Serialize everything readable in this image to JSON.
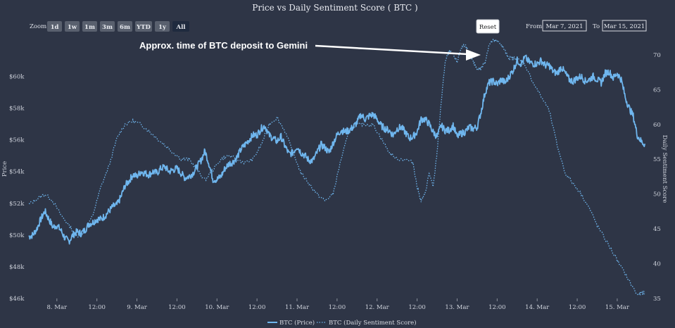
{
  "chart_data": {
    "type": "line",
    "title": "Price vs Daily Sentiment Score ( BTC )",
    "ylabel": "Price",
    "y2label": "Daily Sentiment Score",
    "ylim": [
      46000,
      61800
    ],
    "y2lim": [
      35,
      71
    ],
    "y_ticks": [
      {
        "value": 46000,
        "label": "$46k"
      },
      {
        "value": 48000,
        "label": "$48k"
      },
      {
        "value": 50000,
        "label": "$50k"
      },
      {
        "value": 52000,
        "label": "$52k"
      },
      {
        "value": 54000,
        "label": "$54k"
      },
      {
        "value": 56000,
        "label": "$56k"
      },
      {
        "value": 58000,
        "label": "$58k"
      },
      {
        "value": 60000,
        "label": "$60k"
      }
    ],
    "y2_ticks": [
      35,
      40,
      45,
      50,
      55,
      60,
      65,
      70
    ],
    "x_ticks": [
      {
        "t": 1,
        "label": "8. Mar"
      },
      {
        "t": 1.5,
        "label": "12:00"
      },
      {
        "t": 2,
        "label": "9. Mar"
      },
      {
        "t": 2.5,
        "label": "12:00"
      },
      {
        "t": 3,
        "label": "10. Mar"
      },
      {
        "t": 3.5,
        "label": "12:00"
      },
      {
        "t": 4,
        "label": "11. Mar"
      },
      {
        "t": 4.5,
        "label": "12:00"
      },
      {
        "t": 5,
        "label": "12. Mar"
      },
      {
        "t": 5.5,
        "label": "12:00"
      },
      {
        "t": 6,
        "label": "13. Mar"
      },
      {
        "t": 6.5,
        "label": "12:00"
      },
      {
        "t": 7,
        "label": "14. Mar"
      },
      {
        "t": 7.5,
        "label": "12:00"
      },
      {
        "t": 8,
        "label": "15. Mar"
      }
    ],
    "xlim": [
      0.65,
      8.37
    ],
    "series": [
      {
        "name": "BTC (Price)",
        "style": "solid",
        "axis": "left",
        "color": "#6fb6ee",
        "points": [
          [
            0.65,
            49900
          ],
          [
            0.7,
            50000
          ],
          [
            0.75,
            50400
          ],
          [
            0.8,
            51000
          ],
          [
            0.85,
            51500
          ],
          [
            0.9,
            51000
          ],
          [
            0.95,
            50500
          ],
          [
            1.0,
            50600
          ],
          [
            1.05,
            50300
          ],
          [
            1.1,
            49800
          ],
          [
            1.15,
            49600
          ],
          [
            1.2,
            50000
          ],
          [
            1.25,
            50200
          ],
          [
            1.3,
            50100
          ],
          [
            1.35,
            50300
          ],
          [
            1.4,
            50700
          ],
          [
            1.45,
            50800
          ],
          [
            1.5,
            51000
          ],
          [
            1.55,
            51000
          ],
          [
            1.6,
            51200
          ],
          [
            1.65,
            51500
          ],
          [
            1.7,
            51800
          ],
          [
            1.75,
            51900
          ],
          [
            1.8,
            52400
          ],
          [
            1.85,
            53100
          ],
          [
            1.9,
            53400
          ],
          [
            1.95,
            53800
          ],
          [
            2.0,
            53700
          ],
          [
            2.05,
            54000
          ],
          [
            2.1,
            53900
          ],
          [
            2.15,
            53800
          ],
          [
            2.2,
            54000
          ],
          [
            2.25,
            53900
          ],
          [
            2.3,
            54200
          ],
          [
            2.35,
            54300
          ],
          [
            2.4,
            54000
          ],
          [
            2.45,
            54100
          ],
          [
            2.5,
            54200
          ],
          [
            2.55,
            53900
          ],
          [
            2.6,
            53600
          ],
          [
            2.65,
            53700
          ],
          [
            2.7,
            53900
          ],
          [
            2.75,
            54300
          ],
          [
            2.8,
            54700
          ],
          [
            2.85,
            55300
          ],
          [
            2.9,
            54500
          ],
          [
            2.95,
            53500
          ],
          [
            3.0,
            53500
          ],
          [
            3.05,
            53700
          ],
          [
            3.1,
            54200
          ],
          [
            3.15,
            54500
          ],
          [
            3.2,
            54600
          ],
          [
            3.25,
            54900
          ],
          [
            3.3,
            55400
          ],
          [
            3.35,
            55700
          ],
          [
            3.4,
            56000
          ],
          [
            3.45,
            56300
          ],
          [
            3.5,
            56300
          ],
          [
            3.55,
            56700
          ],
          [
            3.6,
            56900
          ],
          [
            3.65,
            56300
          ],
          [
            3.7,
            56100
          ],
          [
            3.75,
            55900
          ],
          [
            3.8,
            56200
          ],
          [
            3.85,
            55600
          ],
          [
            3.9,
            55100
          ],
          [
            3.95,
            55200
          ],
          [
            4.0,
            55600
          ],
          [
            4.05,
            55200
          ],
          [
            4.1,
            55000
          ],
          [
            4.15,
            54700
          ],
          [
            4.2,
            54700
          ],
          [
            4.25,
            55200
          ],
          [
            4.3,
            55700
          ],
          [
            4.35,
            55500
          ],
          [
            4.4,
            55200
          ],
          [
            4.45,
            55800
          ],
          [
            4.5,
            56300
          ],
          [
            4.55,
            56600
          ],
          [
            4.6,
            56500
          ],
          [
            4.65,
            56600
          ],
          [
            4.7,
            56800
          ],
          [
            4.75,
            57100
          ],
          [
            4.8,
            57600
          ],
          [
            4.85,
            57300
          ],
          [
            4.9,
            57500
          ],
          [
            4.95,
            57600
          ],
          [
            5.0,
            57300
          ],
          [
            5.05,
            56900
          ],
          [
            5.1,
            56700
          ],
          [
            5.15,
            56600
          ],
          [
            5.2,
            56300
          ],
          [
            5.25,
            56700
          ],
          [
            5.3,
            56800
          ],
          [
            5.35,
            56500
          ],
          [
            5.4,
            56100
          ],
          [
            5.45,
            56200
          ],
          [
            5.5,
            56500
          ],
          [
            5.55,
            57300
          ],
          [
            5.6,
            57300
          ],
          [
            5.65,
            57000
          ],
          [
            5.7,
            56500
          ],
          [
            5.75,
            56200
          ],
          [
            5.8,
            56900
          ],
          [
            5.85,
            56600
          ],
          [
            5.9,
            56600
          ],
          [
            5.95,
            56900
          ],
          [
            6.0,
            56200
          ],
          [
            6.05,
            56400
          ],
          [
            6.1,
            56500
          ],
          [
            6.15,
            56800
          ],
          [
            6.2,
            56700
          ],
          [
            6.25,
            56800
          ],
          [
            6.3,
            57800
          ],
          [
            6.35,
            59000
          ],
          [
            6.4,
            59600
          ],
          [
            6.45,
            59700
          ],
          [
            6.5,
            59500
          ],
          [
            6.55,
            59800
          ],
          [
            6.6,
            59600
          ],
          [
            6.65,
            60000
          ],
          [
            6.7,
            60400
          ],
          [
            6.75,
            61000
          ],
          [
            6.8,
            60800
          ],
          [
            6.85,
            61200
          ],
          [
            6.9,
            60900
          ],
          [
            6.95,
            60800
          ],
          [
            7.0,
            60800
          ],
          [
            7.05,
            61000
          ],
          [
            7.1,
            60700
          ],
          [
            7.15,
            60700
          ],
          [
            7.2,
            60300
          ],
          [
            7.25,
            60200
          ],
          [
            7.3,
            60600
          ],
          [
            7.35,
            60200
          ],
          [
            7.4,
            59800
          ],
          [
            7.45,
            59700
          ],
          [
            7.5,
            59900
          ],
          [
            7.55,
            60000
          ],
          [
            7.6,
            59700
          ],
          [
            7.65,
            59800
          ],
          [
            7.7,
            60000
          ],
          [
            7.75,
            59800
          ],
          [
            7.8,
            59600
          ],
          [
            7.85,
            60200
          ],
          [
            7.9,
            60300
          ],
          [
            7.95,
            59900
          ],
          [
            8.0,
            60200
          ],
          [
            8.05,
            59800
          ],
          [
            8.1,
            58700
          ],
          [
            8.15,
            58000
          ],
          [
            8.2,
            57500
          ],
          [
            8.25,
            56300
          ],
          [
            8.3,
            55900
          ],
          [
            8.35,
            55700
          ]
        ]
      },
      {
        "name": "BTC (Daily Sentiment Score)",
        "style": "dotted",
        "axis": "right",
        "color": "#6fb6ee",
        "points": [
          [
            0.65,
            48.5
          ],
          [
            0.75,
            49.3
          ],
          [
            0.85,
            50.0
          ],
          [
            0.95,
            49.0
          ],
          [
            1.05,
            47.0
          ],
          [
            1.15,
            45.5
          ],
          [
            1.25,
            44.0
          ],
          [
            1.35,
            44.5
          ],
          [
            1.45,
            47.0
          ],
          [
            1.55,
            51.0
          ],
          [
            1.65,
            54.0
          ],
          [
            1.75,
            58.0
          ],
          [
            1.85,
            60.0
          ],
          [
            1.95,
            60.5
          ],
          [
            2.05,
            60.0
          ],
          [
            2.15,
            59.0
          ],
          [
            2.25,
            58.0
          ],
          [
            2.35,
            57.0
          ],
          [
            2.45,
            56.0
          ],
          [
            2.55,
            55.0
          ],
          [
            2.65,
            55.0
          ],
          [
            2.75,
            53.5
          ],
          [
            2.85,
            52.0
          ],
          [
            2.95,
            53.5
          ],
          [
            3.05,
            55.0
          ],
          [
            3.15,
            55.5
          ],
          [
            3.25,
            55.0
          ],
          [
            3.35,
            54.5
          ],
          [
            3.45,
            55.0
          ],
          [
            3.55,
            57.0
          ],
          [
            3.65,
            60.0
          ],
          [
            3.75,
            61.0
          ],
          [
            3.85,
            59.0
          ],
          [
            3.95,
            56.0
          ],
          [
            4.05,
            53.0
          ],
          [
            4.15,
            51.5
          ],
          [
            4.25,
            50.0
          ],
          [
            4.35,
            49.0
          ],
          [
            4.45,
            50.0
          ],
          [
            4.55,
            55.0
          ],
          [
            4.65,
            59.0
          ],
          [
            4.75,
            60.0
          ],
          [
            4.85,
            60.0
          ],
          [
            4.95,
            60.0
          ],
          [
            5.05,
            58.0
          ],
          [
            5.15,
            56.0
          ],
          [
            5.25,
            55.0
          ],
          [
            5.35,
            55.0
          ],
          [
            5.45,
            54.5
          ],
          [
            5.5,
            51.0
          ],
          [
            5.55,
            49.0
          ],
          [
            5.6,
            50.0
          ],
          [
            5.65,
            53.0
          ],
          [
            5.7,
            51.0
          ],
          [
            5.75,
            56.0
          ],
          [
            5.8,
            63.0
          ],
          [
            5.85,
            69.0
          ],
          [
            5.9,
            70.5
          ],
          [
            5.95,
            70.0
          ],
          [
            6.0,
            69.0
          ],
          [
            6.05,
            71.0
          ],
          [
            6.1,
            71.5
          ],
          [
            6.15,
            70.0
          ],
          [
            6.2,
            69.0
          ],
          [
            6.25,
            68.0
          ],
          [
            6.3,
            68.0
          ],
          [
            6.35,
            69.0
          ],
          [
            6.4,
            71.5
          ],
          [
            6.45,
            72.0
          ],
          [
            6.5,
            72.0
          ],
          [
            6.55,
            71.5
          ],
          [
            6.6,
            70.5
          ],
          [
            6.65,
            69.5
          ],
          [
            6.7,
            69.5
          ],
          [
            6.75,
            69.5
          ],
          [
            6.85,
            68.5
          ],
          [
            6.95,
            66.0
          ],
          [
            7.05,
            64.0
          ],
          [
            7.15,
            62.0
          ],
          [
            7.25,
            57.0
          ],
          [
            7.35,
            53.0
          ],
          [
            7.45,
            51.5
          ],
          [
            7.55,
            50.0
          ],
          [
            7.65,
            48.0
          ],
          [
            7.75,
            45.5
          ],
          [
            7.85,
            43.5
          ],
          [
            7.95,
            41.5
          ],
          [
            8.05,
            39.5
          ],
          [
            8.15,
            37.5
          ],
          [
            8.25,
            35.5
          ],
          [
            8.3,
            35.7
          ],
          [
            8.35,
            35.8
          ]
        ]
      }
    ],
    "legend": {
      "placement": "bottom-center"
    },
    "annotation": {
      "text": "Approx. time of BTC deposit to Gemini",
      "arrow_to_t": 6.3
    }
  },
  "toolbar": {
    "zoom_label": "Zoom",
    "zoom_buttons": [
      "1d",
      "1w",
      "1m",
      "3m",
      "6m",
      "YTD",
      "1y",
      "All"
    ],
    "active": "All",
    "reset_label": "Reset",
    "from_label": "From",
    "from_value": "Mar 7, 2021",
    "to_label": "To",
    "to_value": "Mar 15, 2021"
  },
  "colors": {
    "background": "#2e3546",
    "series": "#6fb6ee"
  }
}
